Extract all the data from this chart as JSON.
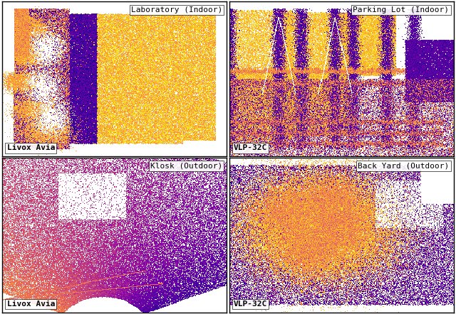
{
  "figsize": [
    6.4,
    4.42
  ],
  "dpi": 100,
  "background_color": "#ffffff",
  "border_color": "#000000",
  "panel_titles": [
    "Laboratory (Indoor)",
    "Parking Lot (Indoor)",
    "Klosk (Outdoor)",
    "Back Yard (Outdoor)"
  ],
  "panel_sensors": [
    "Livox Avia",
    "VLP-32C",
    "Livox Avia",
    "VLP-32C"
  ],
  "label_fontsize": 8,
  "title_fontsize": 8,
  "grid_rows": 2,
  "grid_cols": 2
}
